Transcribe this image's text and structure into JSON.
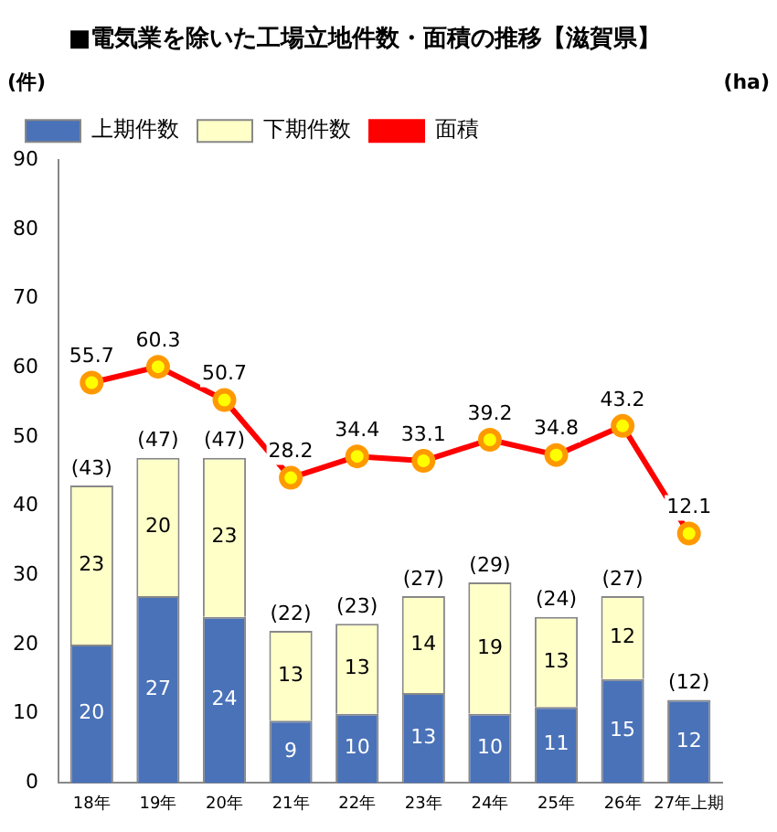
{
  "chart_data": {
    "type": "bar",
    "title": "■電気業を除いた工場立地件数・面積の推移【滋賀県】",
    "ylabel": "(件)",
    "y2label": "(ha)",
    "categories": [
      "18年",
      "19年",
      "20年",
      "21年",
      "22年",
      "23年",
      "24年",
      "25年",
      "26年",
      "27年上期"
    ],
    "stacked": true,
    "series": [
      {
        "name": "上期件数",
        "color": "#4a72b8",
        "values": [
          20,
          27,
          24,
          9,
          10,
          13,
          10,
          11,
          15,
          12
        ]
      },
      {
        "name": "下期件数",
        "color": "#ffffc8",
        "values": [
          23,
          20,
          23,
          13,
          13,
          14,
          19,
          13,
          12,
          null
        ]
      },
      {
        "name": "面積",
        "type": "line",
        "axis": "y2",
        "color": "#ff0000",
        "marker": "circle",
        "values": [
          55.7,
          60.3,
          50.7,
          28.2,
          34.4,
          33.1,
          39.2,
          34.8,
          43.2,
          12.1
        ]
      }
    ],
    "totals": [
      "(43)",
      "(47)",
      "(47)",
      "(22)",
      "(23)",
      "(27)",
      "(29)",
      "(24)",
      "(27)",
      "(12)"
    ],
    "ylim": [
      0,
      90
    ],
    "yticks": [
      0,
      10,
      20,
      30,
      40,
      50,
      60,
      70,
      80,
      90
    ],
    "y2lim": [
      -60,
      120
    ],
    "data_labels": true,
    "grid": false,
    "legend": "top left"
  }
}
